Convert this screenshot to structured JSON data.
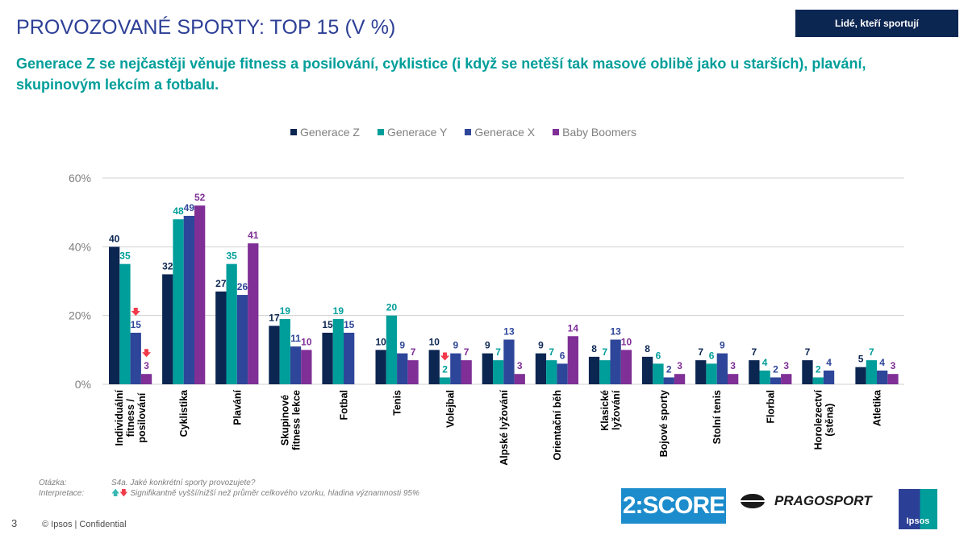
{
  "header": {
    "title": "PROVOZOVANÉ SPORTY: TOP 15 (V %)",
    "tag": "Lidé, kteří sportují",
    "subtitle": "Generace Z se nejčastěji věnuje fitness a posilování, cyklistice (i když se netěší tak masové oblibě jako u starších), plavání, skupinovým lekcím a fotbalu."
  },
  "colors": {
    "gen_z": "#0c2652",
    "gen_y": "#009e9a",
    "gen_x": "#2e4699",
    "boomers": "#7f2f96",
    "gridline": "#d0d0d0",
    "axis_text": "#7f7f7f",
    "sig_down": "#f23a4a",
    "sig_up": "#3ab8b3"
  },
  "chart_data": {
    "type": "bar",
    "title": "",
    "xlabel": "",
    "ylabel": "",
    "ylim": [
      0,
      60
    ],
    "yticks": [
      0,
      20,
      40,
      60
    ],
    "ytick_labels": [
      "0%",
      "20%",
      "40%",
      "60%"
    ],
    "grid": true,
    "legend_position": "top-center",
    "categories": [
      "Individuální fitness / posilování",
      "Cyklistika",
      "Plavání",
      "Skupinové fitness lekce",
      "Fotbal",
      "Tenis",
      "Volejbal",
      "Alpské lyžování",
      "Orientační běh",
      "Klasické lyžování",
      "Bojové sporty",
      "Stolní tenis",
      "Florbal",
      "Horolezectví (stěna)",
      "Atletika"
    ],
    "category_lines": [
      [
        "Individuální",
        "fitness /",
        "posilování"
      ],
      [
        "Cyklistika"
      ],
      [
        "Plavání"
      ],
      [
        "Skupinové",
        "fitness lekce"
      ],
      [
        "Fotbal"
      ],
      [
        "Tenis"
      ],
      [
        "Volejbal"
      ],
      [
        "Alpské lyžování"
      ],
      [
        "Orientační běh"
      ],
      [
        "Klasické",
        "lyžování"
      ],
      [
        "Bojové sporty"
      ],
      [
        "Stolní tenis"
      ],
      [
        "Florbal"
      ],
      [
        "Horolezectví",
        "(stěna)"
      ],
      [
        "Atletika"
      ]
    ],
    "series": [
      {
        "name": "Generace Z",
        "values": [
          40,
          32,
          27,
          17,
          15,
          10,
          10,
          9,
          9,
          8,
          8,
          7,
          7,
          7,
          5
        ]
      },
      {
        "name": "Generace Y",
        "values": [
          35,
          48,
          35,
          19,
          19,
          20,
          2,
          7,
          7,
          7,
          6,
          6,
          4,
          2,
          7
        ]
      },
      {
        "name": "Generace X",
        "values": [
          15,
          49,
          26,
          11,
          15,
          9,
          9,
          13,
          6,
          13,
          2,
          9,
          2,
          4,
          4
        ]
      },
      {
        "name": "Baby Boomers",
        "values": [
          3,
          52,
          41,
          10,
          null,
          7,
          7,
          3,
          14,
          10,
          3,
          3,
          3,
          null,
          3
        ]
      }
    ],
    "significance_markers": [
      {
        "category": "Individuální fitness / posilování",
        "series": "Generace X",
        "direction": "down"
      },
      {
        "category": "Individuální fitness / posilování",
        "series": "Baby Boomers",
        "direction": "down"
      },
      {
        "category": "Volejbal",
        "series": "Generace Y",
        "direction": "down"
      }
    ]
  },
  "notes": {
    "question_label": "Otázka:",
    "question_text": "S4a. Jaké konkrétní sporty provozujete?",
    "interpretation_label": "Interpretace:",
    "interpretation_up_icon": "arrow-up-icon",
    "interpretation_down_icon": "arrow-down-icon",
    "interpretation_text": "Signifikantně vyšší/nižší než průměr celkového vzorku, hladina významnosti 95%"
  },
  "footer": {
    "page_number": "3",
    "copyright": "© Ipsos | Confidential"
  },
  "logos": {
    "score": "2:SCORE",
    "pragosport": "PRAGOSPORT",
    "ipsos": "Ipsos"
  }
}
